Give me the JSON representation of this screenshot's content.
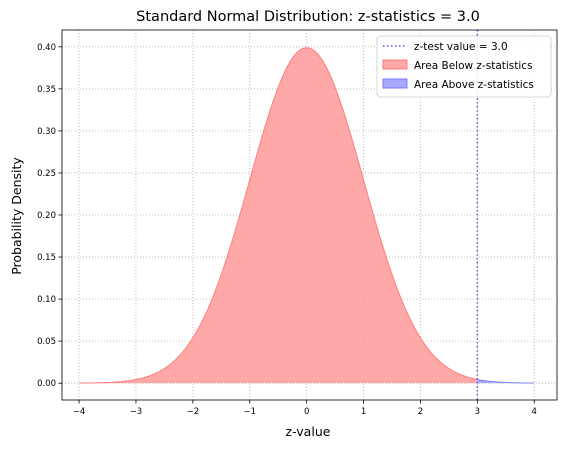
{
  "chart_data": {
    "type": "area",
    "title": "Standard Normal Distribution: z-statistics = 3.0",
    "xlabel": "z-value",
    "ylabel": "Probability Density",
    "xlim": [
      -4.3,
      4.4
    ],
    "ylim": [
      -0.02,
      0.42
    ],
    "xticks": [
      -4,
      -3,
      -2,
      -1,
      0,
      1,
      2,
      3,
      4
    ],
    "yticks": [
      0.0,
      0.05,
      0.1,
      0.15,
      0.2,
      0.25,
      0.3,
      0.35,
      0.4
    ],
    "xtick_labels": [
      "−4",
      "−3",
      "−2",
      "−1",
      "0",
      "1",
      "2",
      "3",
      "4"
    ],
    "ytick_labels": [
      "0.00",
      "0.05",
      "0.10",
      "0.15",
      "0.20",
      "0.25",
      "0.30",
      "0.35",
      "0.40"
    ],
    "grid": true,
    "legend_position": "top-right",
    "z_statistic": 3.0,
    "x_range": [
      -4,
      4
    ],
    "series": [
      {
        "name": "Area Below z-statistics",
        "type": "area",
        "x_range": [
          -4,
          3.0
        ],
        "function": "standard_normal_pdf",
        "color": "#ff9999"
      },
      {
        "name": "Area Above z-statistics",
        "type": "area",
        "x_range": [
          3.0,
          4
        ],
        "function": "standard_normal_pdf",
        "color": "#9999ff"
      },
      {
        "name": "z-test value = 3.0",
        "type": "vline",
        "x": 3.0,
        "color": "#5555ff"
      }
    ]
  }
}
